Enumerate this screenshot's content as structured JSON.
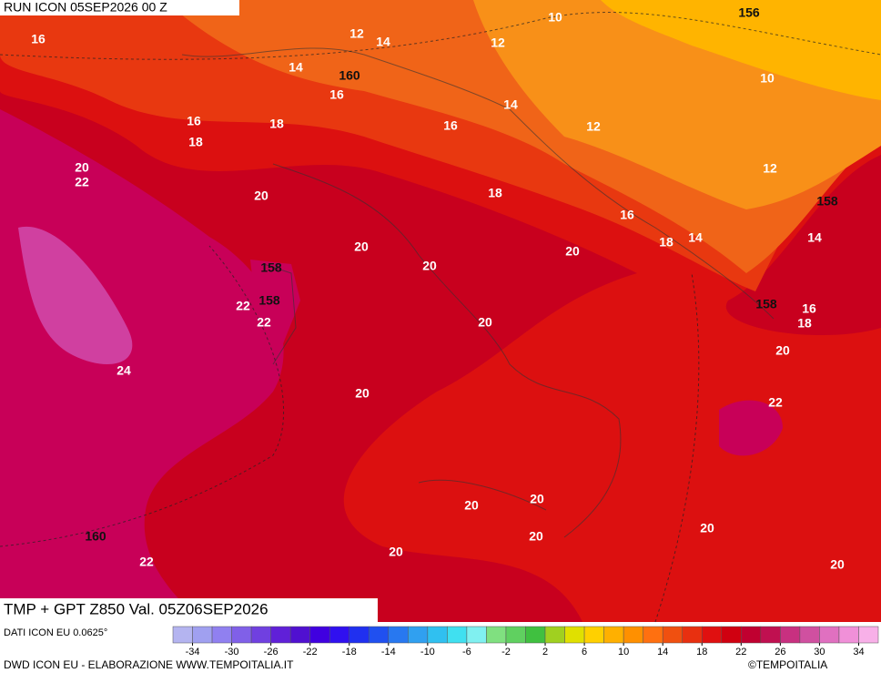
{
  "header": {
    "run": "RUN ICON 05SEP2026 00 Z"
  },
  "map": {
    "temperature_labels": [
      16,
      10,
      12,
      14,
      12,
      14,
      16,
      10,
      14,
      16,
      18,
      16,
      12,
      18,
      20,
      22,
      12,
      20,
      18,
      16,
      18,
      14,
      14,
      20,
      20,
      20,
      22,
      22,
      16,
      20,
      18,
      20,
      24,
      20,
      22,
      20,
      20,
      20,
      20,
      20,
      22,
      20
    ],
    "geopotential_labels": [
      156,
      160,
      158,
      158,
      158,
      158,
      160
    ]
  },
  "footer": {
    "product": "TMP + GPT Z850 Val. 05Z06SEP2026",
    "source": "DATI ICON EU 0.0625°",
    "credit": "DWD ICON EU - ELABORAZIONE WWW.TEMPOITALIA.IT",
    "copyright": "©TEMPOITALIA",
    "colorbar": {
      "ticks": [
        -34,
        -30,
        -26,
        -22,
        -18,
        -14,
        -10,
        -6,
        -2,
        2,
        6,
        10,
        14,
        18,
        22,
        26,
        30,
        34
      ],
      "range": [
        -36,
        36
      ],
      "colors": [
        "#b4b4f0",
        "#a0a0f0",
        "#9080f0",
        "#8060e8",
        "#7040e0",
        "#6020d8",
        "#5010d0",
        "#4000e0",
        "#3010f0",
        "#2030f0",
        "#2050f0",
        "#2878f0",
        "#30a0f0",
        "#30c0f0",
        "#40e0f0",
        "#80f0f0",
        "#80e080",
        "#60d060",
        "#40c040",
        "#a0d020",
        "#e0e000",
        "#ffd000",
        "#ffb000",
        "#ff9000",
        "#ff7010",
        "#f05010",
        "#e83010",
        "#e01010",
        "#d00010",
        "#c00030",
        "#c01050",
        "#c83080",
        "#d050a0",
        "#e070c0",
        "#f090d8",
        "#f8b0e8"
      ]
    }
  }
}
